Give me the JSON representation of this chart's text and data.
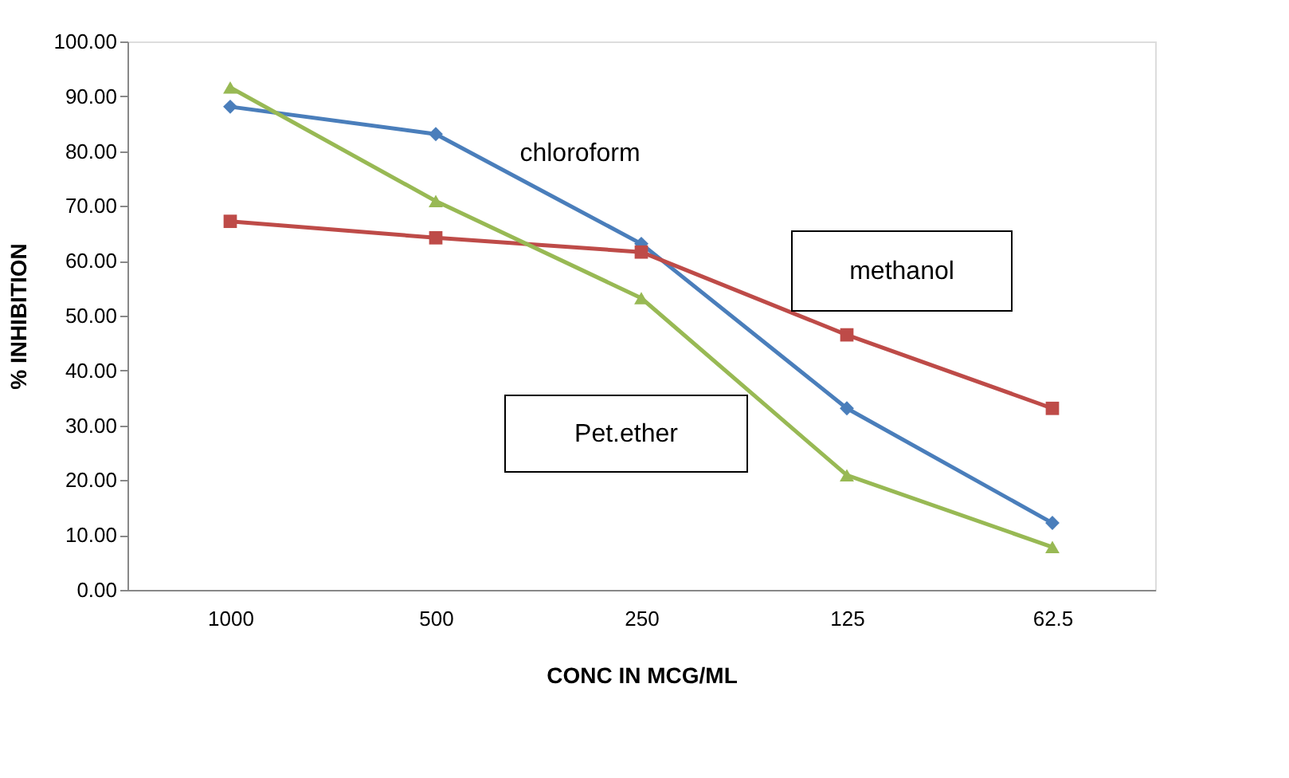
{
  "chart_data": {
    "type": "line",
    "xlabel": "CONC IN MCG/ML",
    "ylabel": "% INHIBITION",
    "categories": [
      "1000",
      "500",
      "250",
      "125",
      "62.5"
    ],
    "ylim": [
      0,
      100
    ],
    "yticks": [
      {
        "value": 0,
        "label": "0.00"
      },
      {
        "value": 10,
        "label": "10.00"
      },
      {
        "value": 20,
        "label": "20.00"
      },
      {
        "value": 30,
        "label": "30.00"
      },
      {
        "value": 40,
        "label": "40.00"
      },
      {
        "value": 50,
        "label": "50.00"
      },
      {
        "value": 60,
        "label": "60.00"
      },
      {
        "value": 70,
        "label": "70.00"
      },
      {
        "value": 80,
        "label": "80.00"
      },
      {
        "value": 90,
        "label": "90.00"
      },
      {
        "value": 100,
        "label": "100.00"
      }
    ],
    "grid": false,
    "series": [
      {
        "name": "chloroform",
        "color": "#4a7ebb",
        "marker": "diamond",
        "values": [
          88.1,
          83.1,
          63.1,
          33.1,
          12.2
        ]
      },
      {
        "name": "methanol",
        "color": "#be4b48",
        "marker": "square",
        "values": [
          67.2,
          64.2,
          61.6,
          46.5,
          33.1
        ]
      },
      {
        "name": "Pet.ether",
        "color": "#98b954",
        "marker": "triangle",
        "values": [
          91.6,
          70.9,
          53.2,
          20.9,
          7.8
        ]
      }
    ]
  }
}
